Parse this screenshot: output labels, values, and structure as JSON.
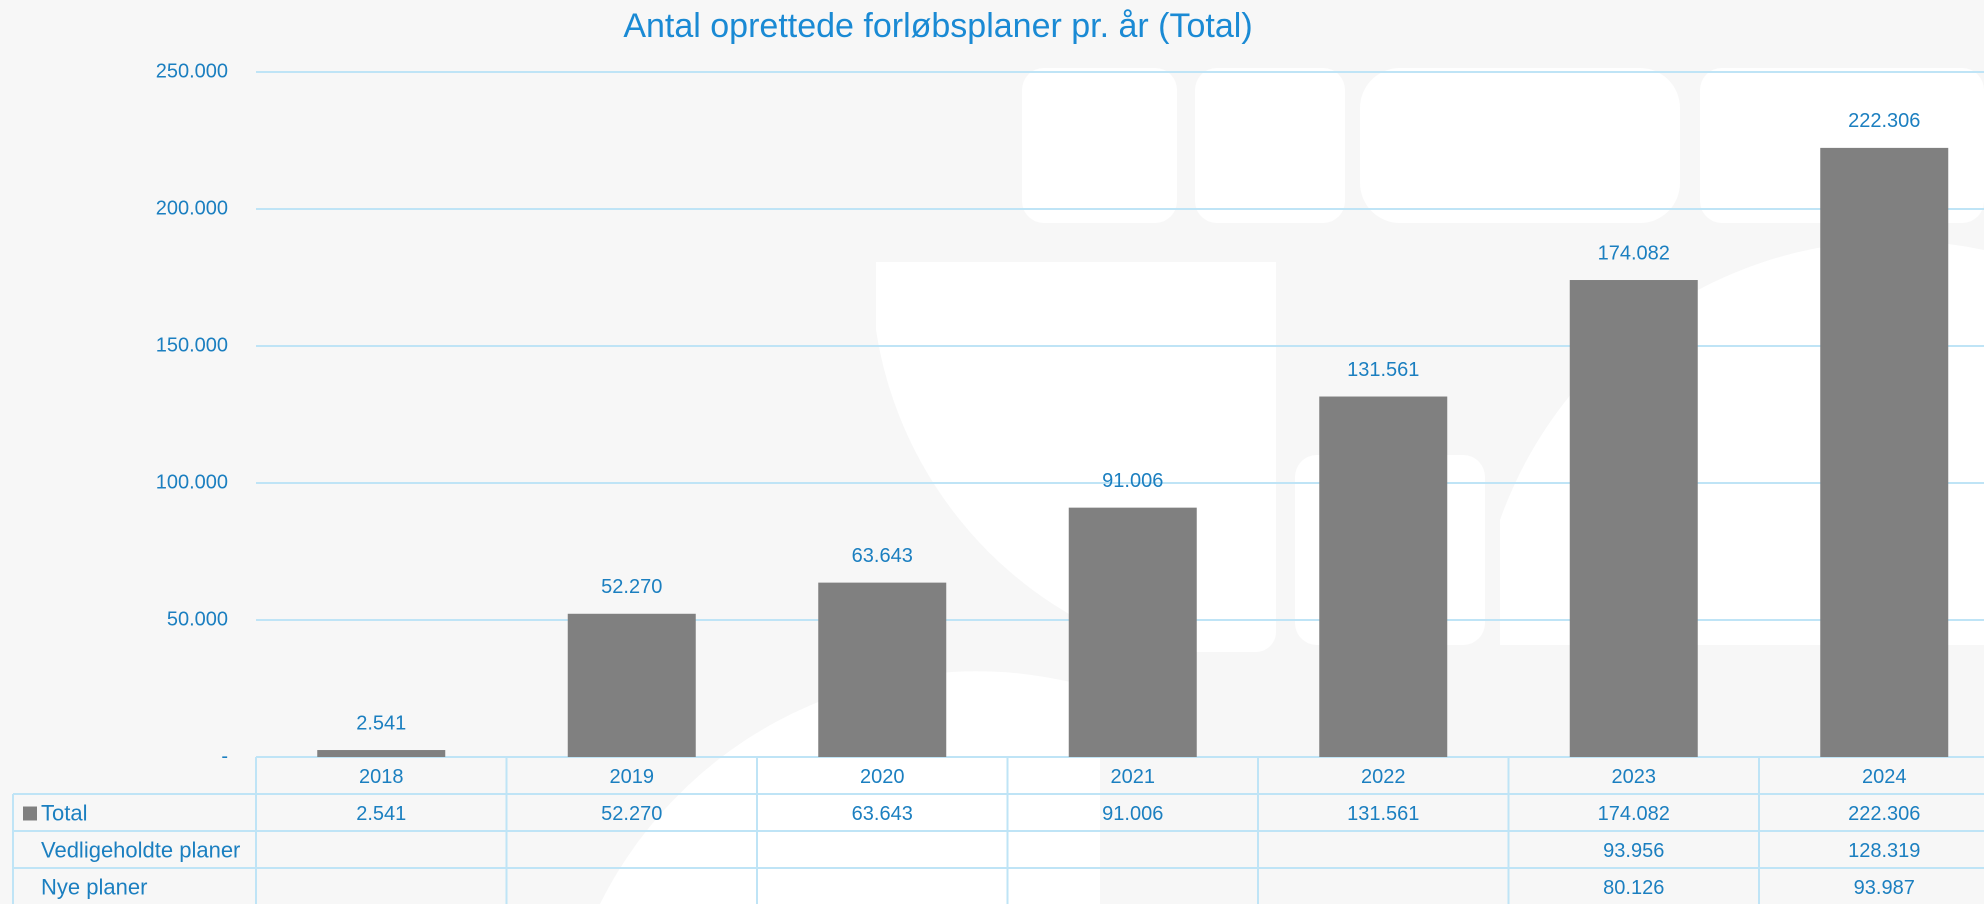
{
  "chart_data": {
    "type": "bar",
    "title": "Antal oprettede forløbsplaner pr. år (Total)",
    "categories": [
      "2018",
      "2019",
      "2020",
      "2021",
      "2022",
      "2023",
      "2024"
    ],
    "series": [
      {
        "name": "Total",
        "color": "#808080",
        "values": [
          2541,
          52270,
          63643,
          91006,
          131561,
          174082,
          222306
        ],
        "value_labels": [
          "2.541",
          "52.270",
          "63.643",
          "91.006",
          "131.561",
          "174.082",
          "222.306"
        ]
      },
      {
        "name": "Vedligeholdte planer",
        "values": [
          null,
          null,
          null,
          null,
          null,
          93956,
          128319
        ],
        "value_labels": [
          null,
          null,
          null,
          null,
          null,
          "93.956",
          "128.319"
        ]
      },
      {
        "name": "Nye planer",
        "values": [
          null,
          null,
          null,
          null,
          null,
          80126,
          93987
        ],
        "value_labels": [
          null,
          null,
          null,
          null,
          null,
          "80.126",
          "93.987"
        ]
      }
    ],
    "ylim": [
      0,
      250000
    ],
    "yticks": [
      {
        "value": 0,
        "label": "-"
      },
      {
        "value": 50000,
        "label": "50.000"
      },
      {
        "value": 100000,
        "label": "100.000"
      },
      {
        "value": 150000,
        "label": "150.000"
      },
      {
        "value": 200000,
        "label": "200.000"
      },
      {
        "value": 250000,
        "label": "250.000"
      }
    ],
    "grid": true
  }
}
